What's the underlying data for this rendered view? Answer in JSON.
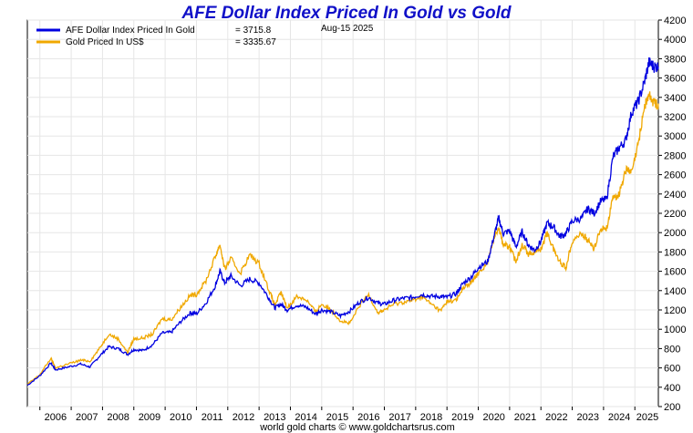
{
  "chart_data": {
    "type": "line",
    "title": "AFE Dollar Index Priced In Gold vs Gold",
    "date_label": "Aug-15  2025",
    "credit": "world gold charts © www.goldchartsrus.com",
    "xlabel": "",
    "ylabel": "",
    "x_ticks": [
      "2006",
      "2007",
      "2008",
      "2009",
      "2010",
      "2011",
      "2012",
      "2013",
      "2014",
      "2015",
      "2016",
      "2017",
      "2018",
      "2019",
      "2020",
      "2021",
      "2022",
      "2023",
      "2024",
      "2025"
    ],
    "y_ticks": [
      200,
      400,
      600,
      800,
      1000,
      1200,
      1400,
      1600,
      1800,
      2000,
      2200,
      2400,
      2600,
      2800,
      3000,
      3200,
      3400,
      3600,
      3800,
      4000,
      4200
    ],
    "ylim": [
      200,
      4200
    ],
    "xlim": [
      2005.6,
      2025.75
    ],
    "grid": true,
    "y_axis_side": "right",
    "legend_position": "top-left",
    "series": [
      {
        "name": "AFE Dollar Index Priced In Gold",
        "legend_value": "= 3715.8",
        "color": "#0000e0",
        "points": [
          [
            2005.6,
            420
          ],
          [
            2006.0,
            520
          ],
          [
            2006.35,
            650
          ],
          [
            2006.5,
            580
          ],
          [
            2006.9,
            610
          ],
          [
            2007.3,
            640
          ],
          [
            2007.6,
            610
          ],
          [
            2007.9,
            720
          ],
          [
            2008.2,
            820
          ],
          [
            2008.5,
            800
          ],
          [
            2008.8,
            740
          ],
          [
            2009.0,
            790
          ],
          [
            2009.3,
            780
          ],
          [
            2009.6,
            840
          ],
          [
            2009.9,
            960
          ],
          [
            2010.2,
            970
          ],
          [
            2010.5,
            1080
          ],
          [
            2010.8,
            1170
          ],
          [
            2011.0,
            1160
          ],
          [
            2011.3,
            1270
          ],
          [
            2011.6,
            1450
          ],
          [
            2011.75,
            1600
          ],
          [
            2011.9,
            1480
          ],
          [
            2012.1,
            1550
          ],
          [
            2012.4,
            1450
          ],
          [
            2012.7,
            1520
          ],
          [
            2013.0,
            1480
          ],
          [
            2013.3,
            1330
          ],
          [
            2013.5,
            1220
          ],
          [
            2013.7,
            1260
          ],
          [
            2013.9,
            1200
          ],
          [
            2014.2,
            1250
          ],
          [
            2014.5,
            1230
          ],
          [
            2014.8,
            1160
          ],
          [
            2015.0,
            1200
          ],
          [
            2015.3,
            1180
          ],
          [
            2015.6,
            1140
          ],
          [
            2015.9,
            1190
          ],
          [
            2016.2,
            1280
          ],
          [
            2016.5,
            1330
          ],
          [
            2016.8,
            1270
          ],
          [
            2017.0,
            1260
          ],
          [
            2017.3,
            1300
          ],
          [
            2017.6,
            1320
          ],
          [
            2017.9,
            1330
          ],
          [
            2018.2,
            1360
          ],
          [
            2018.5,
            1340
          ],
          [
            2018.8,
            1340
          ],
          [
            2019.0,
            1330
          ],
          [
            2019.3,
            1370
          ],
          [
            2019.5,
            1470
          ],
          [
            2019.8,
            1550
          ],
          [
            2020.0,
            1640
          ],
          [
            2020.3,
            1700
          ],
          [
            2020.5,
            1960
          ],
          [
            2020.65,
            2150
          ],
          [
            2020.8,
            1990
          ],
          [
            2021.0,
            2020
          ],
          [
            2021.2,
            1850
          ],
          [
            2021.4,
            2010
          ],
          [
            2021.6,
            1870
          ],
          [
            2021.8,
            1820
          ],
          [
            2022.0,
            1910
          ],
          [
            2022.2,
            2100
          ],
          [
            2022.4,
            2060
          ],
          [
            2022.6,
            1960
          ],
          [
            2022.8,
            1990
          ],
          [
            2023.0,
            2120
          ],
          [
            2023.3,
            2150
          ],
          [
            2023.5,
            2250
          ],
          [
            2023.7,
            2200
          ],
          [
            2023.9,
            2320
          ],
          [
            2024.1,
            2350
          ],
          [
            2024.3,
            2780
          ],
          [
            2024.5,
            2880
          ],
          [
            2024.7,
            2950
          ],
          [
            2024.9,
            3250
          ],
          [
            2025.1,
            3350
          ],
          [
            2025.3,
            3550
          ],
          [
            2025.45,
            3760
          ],
          [
            2025.6,
            3720
          ],
          [
            2025.75,
            3716
          ]
        ]
      },
      {
        "name": "Gold Priced In US$",
        "legend_value": "= 3335.67",
        "color": "#f0a800",
        "points": [
          [
            2005.6,
            430
          ],
          [
            2006.0,
            530
          ],
          [
            2006.35,
            700
          ],
          [
            2006.5,
            600
          ],
          [
            2006.9,
            640
          ],
          [
            2007.3,
            680
          ],
          [
            2007.6,
            670
          ],
          [
            2007.9,
            800
          ],
          [
            2008.2,
            950
          ],
          [
            2008.5,
            900
          ],
          [
            2008.8,
            760
          ],
          [
            2009.0,
            900
          ],
          [
            2009.3,
            910
          ],
          [
            2009.6,
            950
          ],
          [
            2009.9,
            1110
          ],
          [
            2010.2,
            1100
          ],
          [
            2010.5,
            1230
          ],
          [
            2010.8,
            1350
          ],
          [
            2011.0,
            1360
          ],
          [
            2011.3,
            1500
          ],
          [
            2011.6,
            1750
          ],
          [
            2011.75,
            1880
          ],
          [
            2011.9,
            1620
          ],
          [
            2012.1,
            1730
          ],
          [
            2012.4,
            1580
          ],
          [
            2012.7,
            1770
          ],
          [
            2013.0,
            1680
          ],
          [
            2013.3,
            1420
          ],
          [
            2013.5,
            1250
          ],
          [
            2013.7,
            1380
          ],
          [
            2013.9,
            1220
          ],
          [
            2014.2,
            1340
          ],
          [
            2014.5,
            1310
          ],
          [
            2014.8,
            1180
          ],
          [
            2015.0,
            1260
          ],
          [
            2015.3,
            1200
          ],
          [
            2015.6,
            1090
          ],
          [
            2015.9,
            1060
          ],
          [
            2016.2,
            1240
          ],
          [
            2016.5,
            1360
          ],
          [
            2016.8,
            1170
          ],
          [
            2017.0,
            1200
          ],
          [
            2017.3,
            1260
          ],
          [
            2017.6,
            1280
          ],
          [
            2017.9,
            1300
          ],
          [
            2018.2,
            1340
          ],
          [
            2018.5,
            1260
          ],
          [
            2018.8,
            1190
          ],
          [
            2019.0,
            1290
          ],
          [
            2019.3,
            1300
          ],
          [
            2019.5,
            1420
          ],
          [
            2019.8,
            1490
          ],
          [
            2020.0,
            1580
          ],
          [
            2020.3,
            1690
          ],
          [
            2020.5,
            1950
          ],
          [
            2020.65,
            2060
          ],
          [
            2020.8,
            1880
          ],
          [
            2021.0,
            1850
          ],
          [
            2021.2,
            1700
          ],
          [
            2021.4,
            1880
          ],
          [
            2021.6,
            1780
          ],
          [
            2021.8,
            1800
          ],
          [
            2022.0,
            1830
          ],
          [
            2022.2,
            2000
          ],
          [
            2022.4,
            1830
          ],
          [
            2022.6,
            1700
          ],
          [
            2022.8,
            1640
          ],
          [
            2023.0,
            1920
          ],
          [
            2023.3,
            1990
          ],
          [
            2023.5,
            1920
          ],
          [
            2023.7,
            1830
          ],
          [
            2023.9,
            2040
          ],
          [
            2024.1,
            2050
          ],
          [
            2024.3,
            2350
          ],
          [
            2024.5,
            2400
          ],
          [
            2024.7,
            2650
          ],
          [
            2024.9,
            2620
          ],
          [
            2025.1,
            2900
          ],
          [
            2025.3,
            3300
          ],
          [
            2025.45,
            3420
          ],
          [
            2025.6,
            3350
          ],
          [
            2025.75,
            3336
          ]
        ]
      }
    ]
  }
}
